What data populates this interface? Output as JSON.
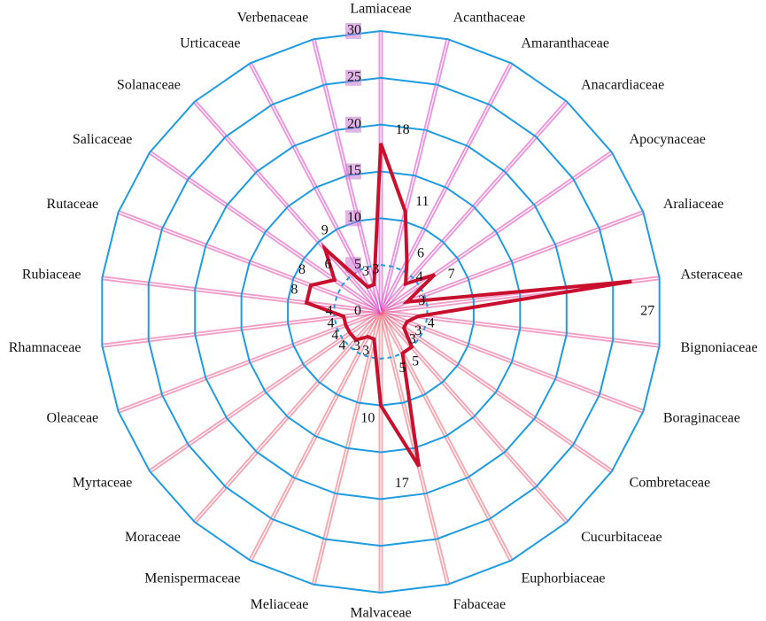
{
  "chart_data": {
    "type": "radar",
    "categories": [
      "Lamiaceae",
      "Acanthaceae",
      "Amaranthaceae",
      "Anacardiaceae",
      "Apocynaceae",
      "Araliaceae",
      "Asteraceae",
      "Bignoniaceae",
      "Boraginaceae",
      "Combretaceae",
      "Cucurbitaceae",
      "Euphorbiaceae",
      "Fabaceae",
      "Malvaceae",
      "Meliaceae",
      "Menispermaceae",
      "Moraceae",
      "Myrtaceae",
      "Oleaceae",
      "Rhamnaceae",
      "Rubiaceae",
      "Rutaceae",
      "Salicaceae",
      "Solanaceae",
      "Urticaceae",
      "Verbenaceae"
    ],
    "values": [
      18,
      11,
      6,
      4,
      7,
      3,
      27,
      4,
      3,
      3,
      5,
      5,
      17,
      10,
      3,
      3,
      4,
      4,
      4,
      4,
      8,
      8,
      6,
      9,
      3,
      3
    ],
    "color": "#c8102e",
    "grid_color": "#1f9be0",
    "ylim": [
      0,
      30
    ],
    "yticks": [
      0,
      5,
      10,
      15,
      20,
      25,
      30
    ],
    "grid": true
  }
}
